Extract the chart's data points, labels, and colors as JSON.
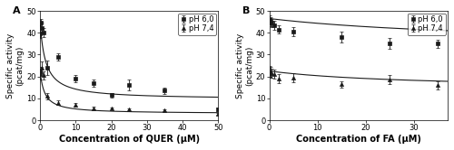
{
  "panel_A": {
    "label": "A",
    "xlabel": "Concentration of QUER (μM)",
    "ylabel": "Specific activity\n(pcat/mg)",
    "xlim": [
      0,
      50
    ],
    "ylim": [
      0,
      50
    ],
    "xticks": [
      0,
      10,
      20,
      30,
      40,
      50
    ],
    "yticks": [
      0,
      10,
      20,
      30,
      40,
      50
    ],
    "pH60": {
      "x": [
        0.1,
        0.25,
        0.5,
        1.0,
        2.0,
        5.0,
        10.0,
        15.0,
        20.0,
        25.0,
        35.0,
        50.0
      ],
      "y": [
        39.5,
        44.5,
        42.0,
        40.0,
        24.0,
        29.0,
        19.0,
        17.0,
        11.5,
        16.0,
        13.5,
        5.0
      ],
      "yerr": [
        2.0,
        2.0,
        2.5,
        2.0,
        3.5,
        1.5,
        1.5,
        1.5,
        1.0,
        2.5,
        1.5,
        0.8
      ],
      "marker": "s",
      "label": "pH 6,0"
    },
    "pH74": {
      "x": [
        0.1,
        0.25,
        0.5,
        1.0,
        2.0,
        5.0,
        10.0,
        15.0,
        20.0,
        25.0,
        35.0,
        50.0
      ],
      "y": [
        21.0,
        22.5,
        24.0,
        20.5,
        11.0,
        8.0,
        7.0,
        5.5,
        5.5,
        5.0,
        4.5,
        3.0
      ],
      "yerr": [
        2.5,
        2.0,
        3.0,
        2.0,
        1.5,
        1.0,
        0.8,
        0.6,
        0.5,
        0.5,
        0.5,
        0.5
      ],
      "marker": "^",
      "label": "pH 7,4"
    },
    "fit60_x": [
      0.001,
      0.1,
      0.25,
      0.5,
      1.0,
      2.0,
      5.0,
      10.0,
      15.0,
      20.0,
      30.0,
      40.0,
      50.0
    ],
    "fit60": {
      "Vmin": 9.5,
      "Vmax": 46.0,
      "IC50": 1.5
    },
    "fit74": {
      "Vmin": 3.0,
      "Vmax": 23.5,
      "IC50": 1.2
    }
  },
  "panel_B": {
    "label": "B",
    "xlabel": "Concentration of FA (μM)",
    "ylabel": "Specific activity\n(pcat/mg)",
    "xlim": [
      0,
      37
    ],
    "ylim": [
      0,
      50
    ],
    "xticks": [
      0,
      10,
      20,
      30
    ],
    "yticks": [
      0,
      10,
      20,
      30,
      40,
      50
    ],
    "pH60": {
      "x": [
        0.1,
        0.25,
        0.5,
        1.0,
        2.0,
        5.0,
        15.0,
        25.0,
        35.0
      ],
      "y": [
        46.0,
        45.0,
        44.5,
        43.5,
        41.5,
        40.5,
        38.0,
        35.0,
        35.0
      ],
      "yerr": [
        2.0,
        2.0,
        2.0,
        2.0,
        2.0,
        2.0,
        2.5,
        2.5,
        2.0
      ],
      "marker": "s",
      "label": "pH 6,0"
    },
    "pH74": {
      "x": [
        0.1,
        0.25,
        0.5,
        1.0,
        2.0,
        5.0,
        15.0,
        25.0,
        35.0
      ],
      "y": [
        22.5,
        22.0,
        21.5,
        21.0,
        19.0,
        19.5,
        16.5,
        18.5,
        16.0
      ],
      "yerr": [
        2.5,
        2.5,
        2.0,
        2.0,
        2.0,
        2.0,
        1.5,
        2.0,
        2.0
      ],
      "marker": "^",
      "label": "pH 7,4"
    },
    "fit60": {
      "Vmin": 33.5,
      "Vmax": 46.5,
      "IC50": 50.0
    },
    "fit74": {
      "Vmin": 14.0,
      "Vmax": 22.5,
      "IC50": 30.0
    }
  },
  "line_color": "#1a1a1a",
  "marker_color": "#1a1a1a",
  "marker_size": 3.0,
  "font_size": 6.5,
  "xlabel_fontsize": 7.0,
  "ylabel_fontsize": 6.5,
  "legend_font_size": 6.0,
  "tick_labelsize": 6.0
}
